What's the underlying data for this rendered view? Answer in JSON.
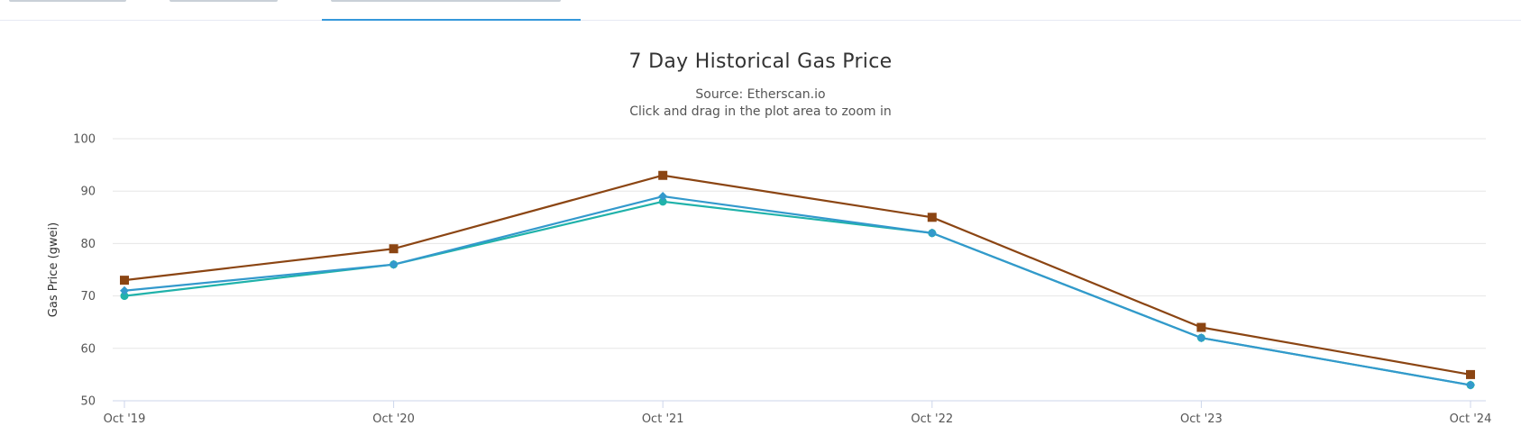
{
  "chart_data": {
    "type": "line",
    "title": "7 Day Historical Gas Price",
    "subtitles": [
      "Source: Etherscan.io",
      "Click and drag in the plot area to zoom in"
    ],
    "xlabel": "",
    "ylabel": "Gas Price (gwei)",
    "categories": [
      "Oct '19",
      "Oct '20",
      "Oct '21",
      "Oct '22",
      "Oct '23",
      "Oct '24"
    ],
    "ylim": [
      50,
      100
    ],
    "yticks": [
      50,
      60,
      70,
      80,
      90,
      100
    ],
    "grid": true,
    "series": [
      {
        "color": "#8b4513",
        "marker": "square",
        "values": [
          73,
          79,
          93,
          85,
          64,
          55
        ]
      },
      {
        "color": "#3399cc",
        "marker": "diamond",
        "values": [
          71,
          76,
          89,
          82,
          62,
          53
        ]
      },
      {
        "color": "#20b2aa",
        "marker": "circle",
        "values": [
          70,
          76,
          88,
          82,
          62,
          53
        ]
      }
    ]
  }
}
